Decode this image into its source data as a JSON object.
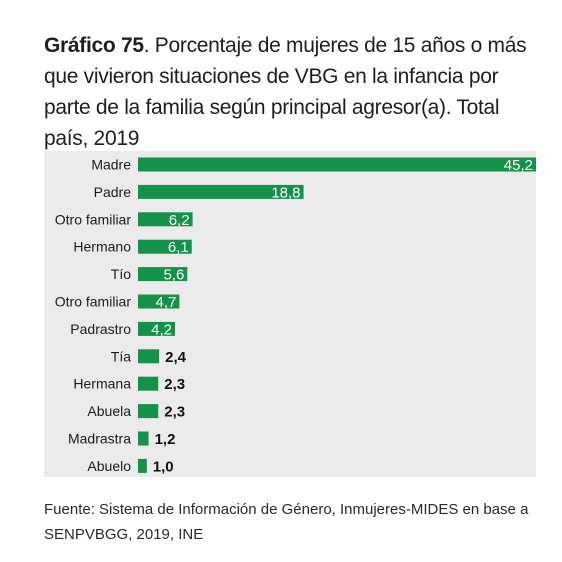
{
  "title_bold": "Gráfico 75",
  "title_rest": ". Porcentaje de mujeres de 15 años o más que vivieron situaciones de VBG en la infancia por parte de la familia según principal agresor(a). Total país, 2019",
  "source": "Fuente: Sistema de Información de Género, Inmujeres-MIDES en base a SENPVBGG, 2019, INE",
  "colors": {
    "bar": "#14924a",
    "panel": "#ebebeb",
    "inside_label": "#ffffff",
    "outside_label": "#111111"
  },
  "chart_data": {
    "type": "bar",
    "orientation": "horizontal",
    "categories": [
      "Madre",
      "Padre",
      "Otro familiar",
      "Hermano",
      "Tío",
      "Otro familiar",
      "Padrastro",
      "Tía",
      "Hermana",
      "Abuela",
      "Madrastra",
      "Abuelo"
    ],
    "values": [
      45.2,
      18.8,
      6.2,
      6.1,
      5.6,
      4.7,
      4.2,
      2.4,
      2.3,
      2.3,
      1.2,
      1.0
    ],
    "value_labels": [
      "45,2",
      "18,8",
      "6,2",
      "6,1",
      "5,6",
      "4,7",
      "4,2",
      "2,4",
      "2,3",
      "2,3",
      "1,2",
      "1,0"
    ],
    "xlim": [
      0,
      45.2
    ],
    "grid": false,
    "legend": "none"
  }
}
